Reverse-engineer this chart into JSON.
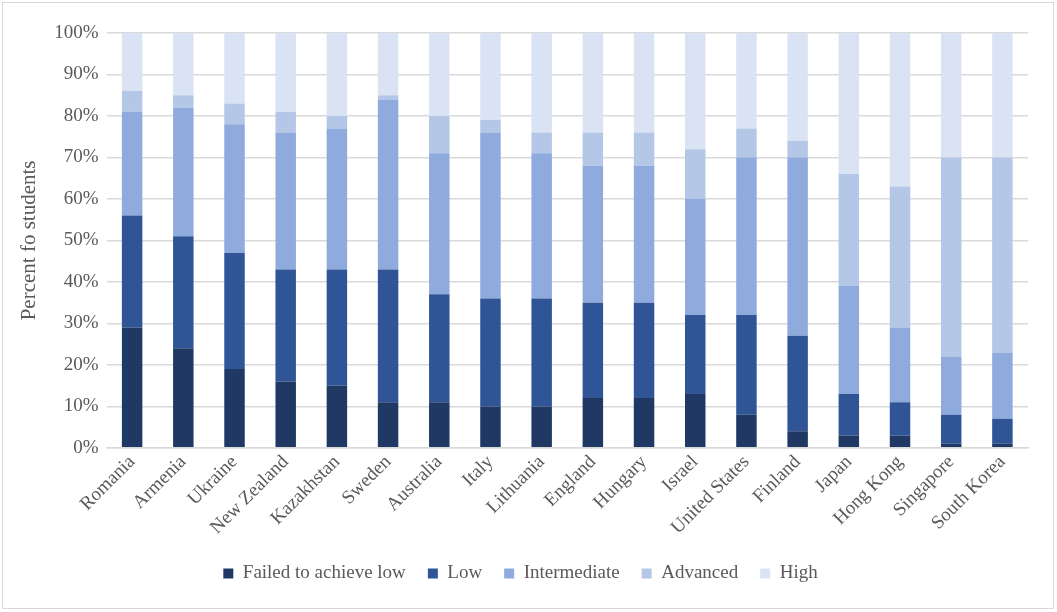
{
  "chart_data": {
    "type": "bar",
    "stacked": true,
    "ylabel": "Percent fo students",
    "categories": [
      "Romania",
      "Armenia",
      "Ukraine",
      "New Zealand",
      "Kazakhstan",
      "Sweden",
      "Australia",
      "Italy",
      "Lithuania",
      "England",
      "Hungary",
      "Israel",
      "United States",
      "Finland",
      "Japan",
      "Hong Kong",
      "Singapore",
      "South Korea"
    ],
    "series": [
      {
        "name": "Failed to achieve low",
        "color": "#203864",
        "values": [
          29,
          24,
          19,
          16,
          15,
          11,
          11,
          10,
          10,
          12,
          12,
          13,
          8,
          4,
          3,
          3,
          1,
          1
        ]
      },
      {
        "name": "Low",
        "color": "#2f5597",
        "values": [
          27,
          27,
          28,
          27,
          28,
          32,
          26,
          26,
          26,
          23,
          23,
          19,
          24,
          23,
          10,
          8,
          7,
          6
        ]
      },
      {
        "name": "Intermediate",
        "color": "#8faadc",
        "values": [
          25,
          31,
          31,
          33,
          34,
          41,
          34,
          40,
          35,
          33,
          33,
          28,
          38,
          43,
          26,
          18,
          14,
          16
        ]
      },
      {
        "name": "Advanced",
        "color": "#b4c7e7",
        "values": [
          5,
          3,
          5,
          5,
          3,
          1,
          9,
          3,
          5,
          8,
          8,
          12,
          7,
          4,
          27,
          34,
          48,
          47
        ]
      },
      {
        "name": "High",
        "color": "#dae3f3",
        "values": [
          14,
          15,
          17,
          19,
          20,
          15,
          20,
          21,
          24,
          24,
          24,
          28,
          23,
          26,
          34,
          37,
          30,
          30
        ]
      }
    ],
    "ylim": [
      0,
      100
    ],
    "yticks": [
      {
        "value": 0,
        "label": "0%"
      },
      {
        "value": 10,
        "label": "10%"
      },
      {
        "value": 20,
        "label": "20%"
      },
      {
        "value": 30,
        "label": "30%"
      },
      {
        "value": 40,
        "label": "40%"
      },
      {
        "value": 50,
        "label": "50%"
      },
      {
        "value": 60,
        "label": "60%"
      },
      {
        "value": 70,
        "label": "70%"
      },
      {
        "value": 80,
        "label": "80%"
      },
      {
        "value": 90,
        "label": "90%"
      },
      {
        "value": 100,
        "label": "100%"
      }
    ],
    "grid": "y",
    "legend": "bottom"
  }
}
